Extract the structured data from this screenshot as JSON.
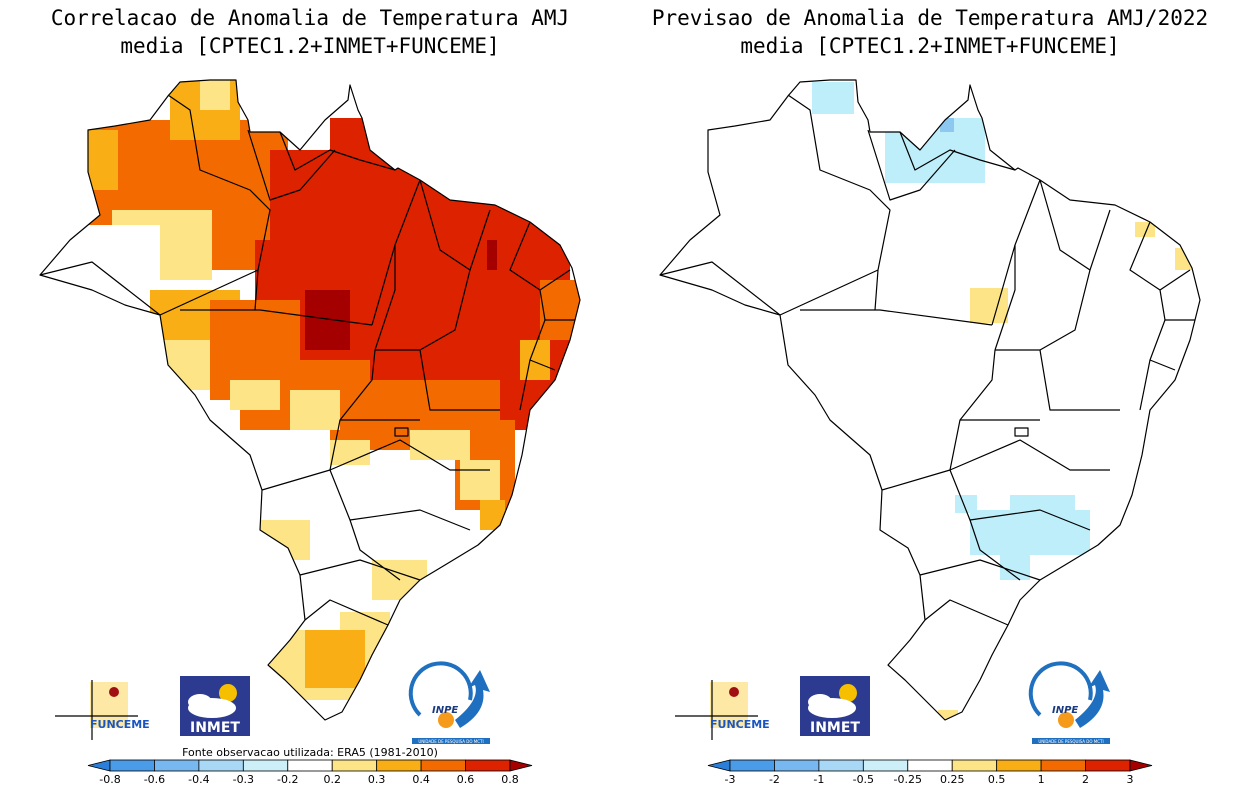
{
  "panels": [
    {
      "id": "left",
      "title_line1": "Correlacao de Anomalia de Temperatura AMJ",
      "title_line2": "media [CPTEC1.2+INMET+FUNCEME]",
      "source_note": "Fonte observacao utilizada: ERA5 (1981-2010)",
      "colorbar": {
        "ticks": [
          "-0.8",
          "-0.6",
          "-0.4",
          "-0.3",
          "-0.2",
          "0.2",
          "0.3",
          "0.4",
          "0.6",
          "0.8"
        ],
        "colors": [
          "#2b7fd8",
          "#4a9be8",
          "#78b8f0",
          "#a8d8f5",
          "#cdeff8",
          "#ffffff",
          "#fde587",
          "#f9ae15",
          "#f36a00",
          "#dd2200",
          "#a40000"
        ]
      }
    },
    {
      "id": "right",
      "title_line1": "Previsao de Anomalia de Temperatura AMJ/2022",
      "title_line2": "media [CPTEC1.2+INMET+FUNCEME]",
      "colorbar": {
        "ticks": [
          "-3",
          "-2",
          "-1",
          "-0.5",
          "-0.25",
          "0.25",
          "0.5",
          "1",
          "2",
          "3"
        ],
        "colors": [
          "#2b7fd8",
          "#4a9be8",
          "#78b8f0",
          "#a8d8f5",
          "#cdeff8",
          "#ffffff",
          "#fde587",
          "#f9ae15",
          "#f36a00",
          "#dd2200",
          "#a40000"
        ]
      }
    }
  ],
  "logos": {
    "funceme": "FUNCEME",
    "inmet": "INMET",
    "inpe": "INPE",
    "inpe_tagline": "UNIDADE DE PESQUISA DO MCTI"
  },
  "palette": {
    "pale_yellow": "#fde587",
    "light_orange": "#f9ae15",
    "orange": "#f36a00",
    "red": "#dd2200",
    "dark_red": "#a40000",
    "light_blue": "#bdeefa",
    "blue": "#8cc8f0"
  }
}
